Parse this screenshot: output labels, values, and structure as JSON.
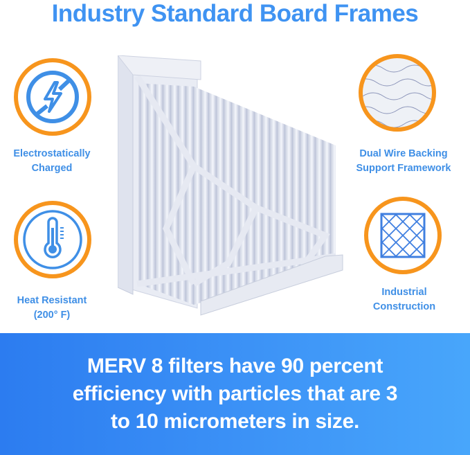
{
  "title": "Industry Standard Board Frames",
  "features": [
    {
      "label_lines": [
        "Electrostatically",
        "Charged"
      ],
      "icon": "no-static-lightning-icon"
    },
    {
      "label_lines": [
        "Heat Resistant",
        "(200° F)"
      ],
      "icon": "thermometer-icon"
    },
    {
      "label_lines": [
        "Dual Wire Backing",
        "Support Framework"
      ],
      "icon": "wire-mesh-closeup-icon"
    },
    {
      "label_lines": [
        "Industrial",
        "Construction"
      ],
      "icon": "grid-frame-icon"
    }
  ],
  "banner": {
    "lines": [
      "MERV 8 filters have 90 percent",
      "efficiency with particles that are 3",
      "to 10 micrometers in size."
    ]
  },
  "colors": {
    "title": "#3f93f2",
    "ring": "#f7951d",
    "icon": "#3f8fe6",
    "banner_start": "#2c7cf0",
    "banner_end": "#48a6fb"
  }
}
